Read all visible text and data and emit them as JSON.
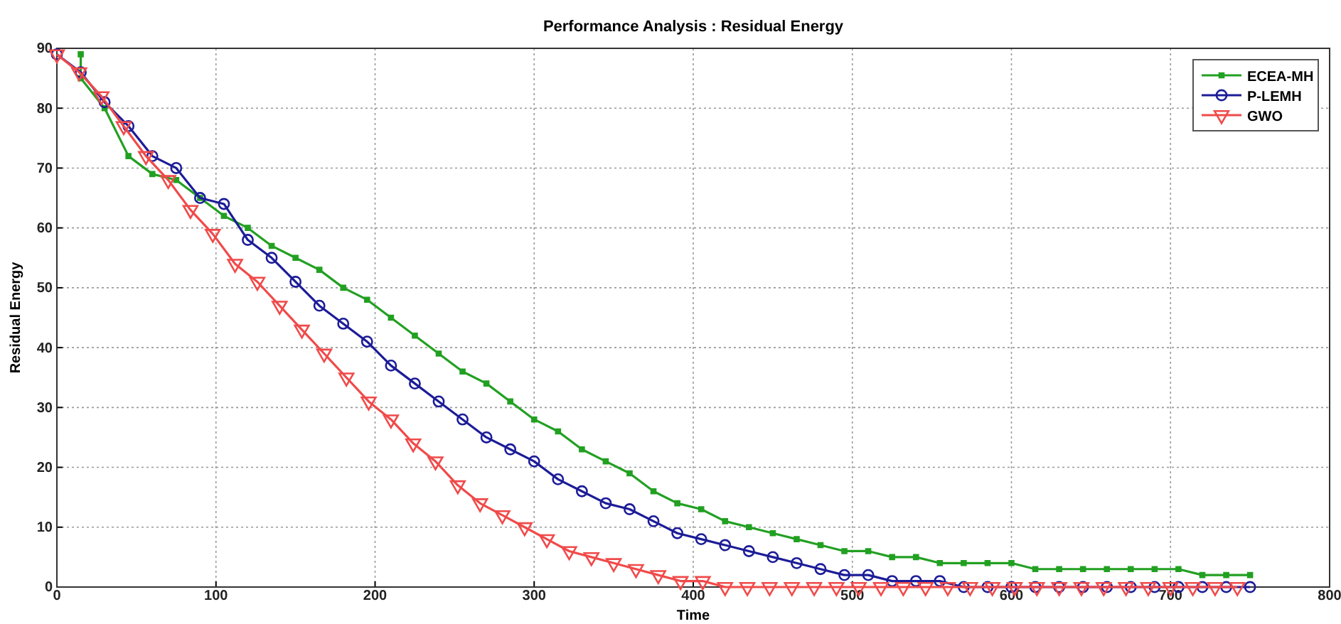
{
  "chart_data": {
    "type": "line",
    "title": "Performance Analysis : Residual Energy",
    "xlabel": "Time",
    "ylabel": "Residual Energy",
    "xlim": [
      0,
      800
    ],
    "xticks": [
      0,
      100,
      200,
      300,
      400,
      500,
      600,
      700,
      800
    ],
    "ylim": [
      0,
      90
    ],
    "yticks": [
      0,
      10,
      20,
      30,
      40,
      50,
      60,
      70,
      80,
      90
    ],
    "grid": true,
    "legend": "top right",
    "line_style": "solid",
    "series": [
      {
        "name": "ECEA-MH",
        "color": "#22a022",
        "marker": "square",
        "x": [
          15,
          15,
          30,
          45,
          60,
          75,
          90,
          105,
          120,
          135,
          150,
          165,
          180,
          195,
          210,
          225,
          240,
          255,
          270,
          285,
          300,
          315,
          330,
          345,
          360,
          375,
          390,
          405,
          420,
          435,
          450,
          465,
          480,
          495,
          510,
          525,
          540,
          555,
          570,
          585,
          600,
          615,
          630,
          645,
          660,
          675,
          690,
          705,
          720,
          735,
          750
        ],
        "values": [
          89,
          85,
          80,
          72,
          69,
          68,
          65,
          62,
          60,
          57,
          55,
          53,
          50,
          48,
          45,
          42,
          39,
          36,
          34,
          31,
          28,
          26,
          23,
          21,
          19,
          16,
          14,
          13,
          11,
          10,
          9,
          8,
          7,
          6,
          6,
          5,
          5,
          4,
          4,
          4,
          4,
          3,
          3,
          3,
          3,
          3,
          3,
          3,
          2,
          2,
          2
        ]
      },
      {
        "name": "P-LEMH",
        "color": "#1c1c98",
        "marker": "circle",
        "x": [
          0,
          15,
          30,
          45,
          60,
          75,
          90,
          105,
          120,
          135,
          150,
          165,
          180,
          195,
          210,
          225,
          240,
          255,
          270,
          285,
          300,
          315,
          330,
          345,
          360,
          375,
          390,
          405,
          420,
          435,
          450,
          465,
          480,
          495,
          510,
          525,
          540,
          555,
          570,
          585,
          600,
          615,
          630,
          645,
          660,
          675,
          690,
          705,
          720,
          735,
          750
        ],
        "values": [
          89,
          86,
          81,
          77,
          72,
          70,
          65,
          64,
          58,
          55,
          51,
          47,
          44,
          41,
          37,
          34,
          31,
          28,
          25,
          23,
          21,
          18,
          16,
          14,
          13,
          11,
          9,
          8,
          7,
          6,
          5,
          4,
          3,
          2,
          2,
          1,
          1,
          1,
          0,
          0,
          0,
          0,
          0,
          0,
          0,
          0,
          0,
          0,
          0,
          0,
          0
        ]
      },
      {
        "name": "GWO",
        "color": "#f04a4a",
        "marker": "triangle",
        "x": [
          0,
          14,
          28,
          42,
          56,
          70,
          84,
          98,
          112,
          126,
          140,
          154,
          168,
          182,
          196,
          210,
          224,
          238,
          252,
          266,
          280,
          294,
          308,
          322,
          336,
          350,
          364,
          378,
          392,
          406,
          420,
          434,
          448,
          462,
          476,
          490,
          504,
          518,
          532,
          546,
          560,
          574,
          588,
          602,
          616,
          630,
          644,
          658,
          672,
          686,
          700,
          714,
          728,
          742
        ],
        "values": [
          89,
          86,
          82,
          77,
          72,
          68,
          63,
          59,
          54,
          51,
          47,
          43,
          39,
          35,
          31,
          28,
          24,
          21,
          17,
          14,
          12,
          10,
          8,
          6,
          5,
          4,
          3,
          2,
          1,
          1,
          0,
          0,
          0,
          0,
          0,
          0,
          0,
          0,
          0,
          0,
          0,
          0,
          0,
          0,
          0,
          0,
          0,
          0,
          0,
          0,
          0,
          0,
          0,
          0
        ]
      }
    ]
  }
}
